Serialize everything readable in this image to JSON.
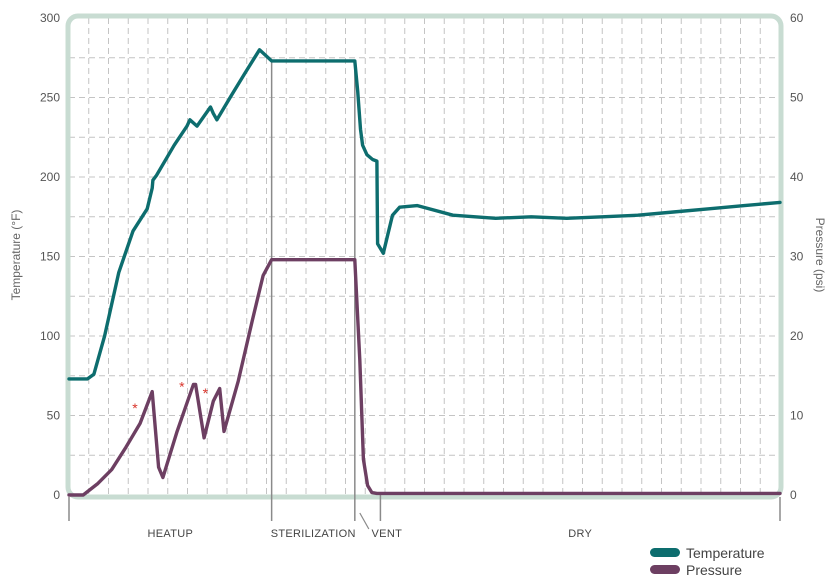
{
  "chart_data": {
    "type": "line",
    "title": "",
    "xlabel": "",
    "ylabel": "Temperature (°F)",
    "y2label": "Pressure (psi)",
    "ylim": [
      0,
      300
    ],
    "y2lim": [
      0,
      60
    ],
    "yticks": [
      "0",
      "50",
      "100",
      "150",
      "200",
      "250",
      "300"
    ],
    "y2ticks": [
      "0",
      "10",
      "20",
      "30",
      "40",
      "50",
      "60"
    ],
    "xlim": [
      0,
      100
    ],
    "phases": [
      {
        "label": "HEATUP",
        "start": 0,
        "end": 28.5
      },
      {
        "label": "STERILIZATION",
        "start": 28.5,
        "end": 40.2
      },
      {
        "label": "VENT",
        "start": 40.2,
        "end": 43.8
      },
      {
        "label": "DRY",
        "start": 43.8,
        "end": 100
      }
    ],
    "legend": {
      "position": "bottom-right"
    },
    "grid": true,
    "marker_symbol": "*",
    "markers_x": [
      10.4,
      17.0,
      20.3
    ],
    "series": [
      {
        "name": "Temperature",
        "axis": "left",
        "color": "#0d6d6e",
        "x": [
          0,
          2.6,
          3.5,
          5.0,
          7.0,
          9.0,
          11.0,
          11.7,
          11.8,
          12.3,
          14.8,
          16.6,
          17.0,
          18.0,
          19.9,
          20.3,
          20.8,
          22.8,
          24.7,
          26.8,
          28.5,
          40.2,
          40.6,
          41.0,
          41.3,
          41.9,
          42.7,
          43.3,
          43.4,
          44.2,
          44.8,
          45.5,
          46.5,
          49.0,
          54.0,
          60.0,
          65.0,
          70.0,
          75.0,
          80.0,
          85.0,
          90.0,
          95.0,
          100
        ],
        "y": [
          73,
          73,
          76,
          100,
          140,
          166,
          180,
          193,
          198,
          201,
          220,
          232,
          236,
          232,
          244,
          240,
          236,
          251,
          265,
          280,
          273,
          273,
          254,
          230,
          220,
          214,
          211,
          210,
          158,
          152,
          163,
          176,
          181,
          182,
          176,
          174,
          175,
          174,
          175,
          176,
          178,
          180,
          182,
          184
        ]
      },
      {
        "name": "Pressure",
        "axis": "right",
        "color": "#6d3f62",
        "x": [
          0,
          2.0,
          4.0,
          6.0,
          8.0,
          10.0,
          11.7,
          12.6,
          13.2,
          15.2,
          17.5,
          17.8,
          19.0,
          20.3,
          21.2,
          21.8,
          23.8,
          25.8,
          27.3,
          28.5,
          40.2,
          40.9,
          41.4,
          42.0,
          42.6,
          43.3,
          44.0,
          100
        ],
        "y": [
          0,
          0,
          1.4,
          3.2,
          6.0,
          9.0,
          13.0,
          3.5,
          2.2,
          8.0,
          13.9,
          13.9,
          7.2,
          11.8,
          13.4,
          8.0,
          14.3,
          22.0,
          27.6,
          29.6,
          29.6,
          17.0,
          4.5,
          1.2,
          0.3,
          0.2,
          0.2,
          0.2
        ]
      }
    ]
  },
  "legend": {
    "items": [
      {
        "label": "Temperature",
        "color": "#0d6d6e"
      },
      {
        "label": "Pressure",
        "color": "#6d3f62"
      }
    ]
  },
  "colors": {
    "frame": "#c8dcd2",
    "grid": "#c4c4c4",
    "phase_line": "#8a8a8a",
    "marker": "#d9342b"
  }
}
